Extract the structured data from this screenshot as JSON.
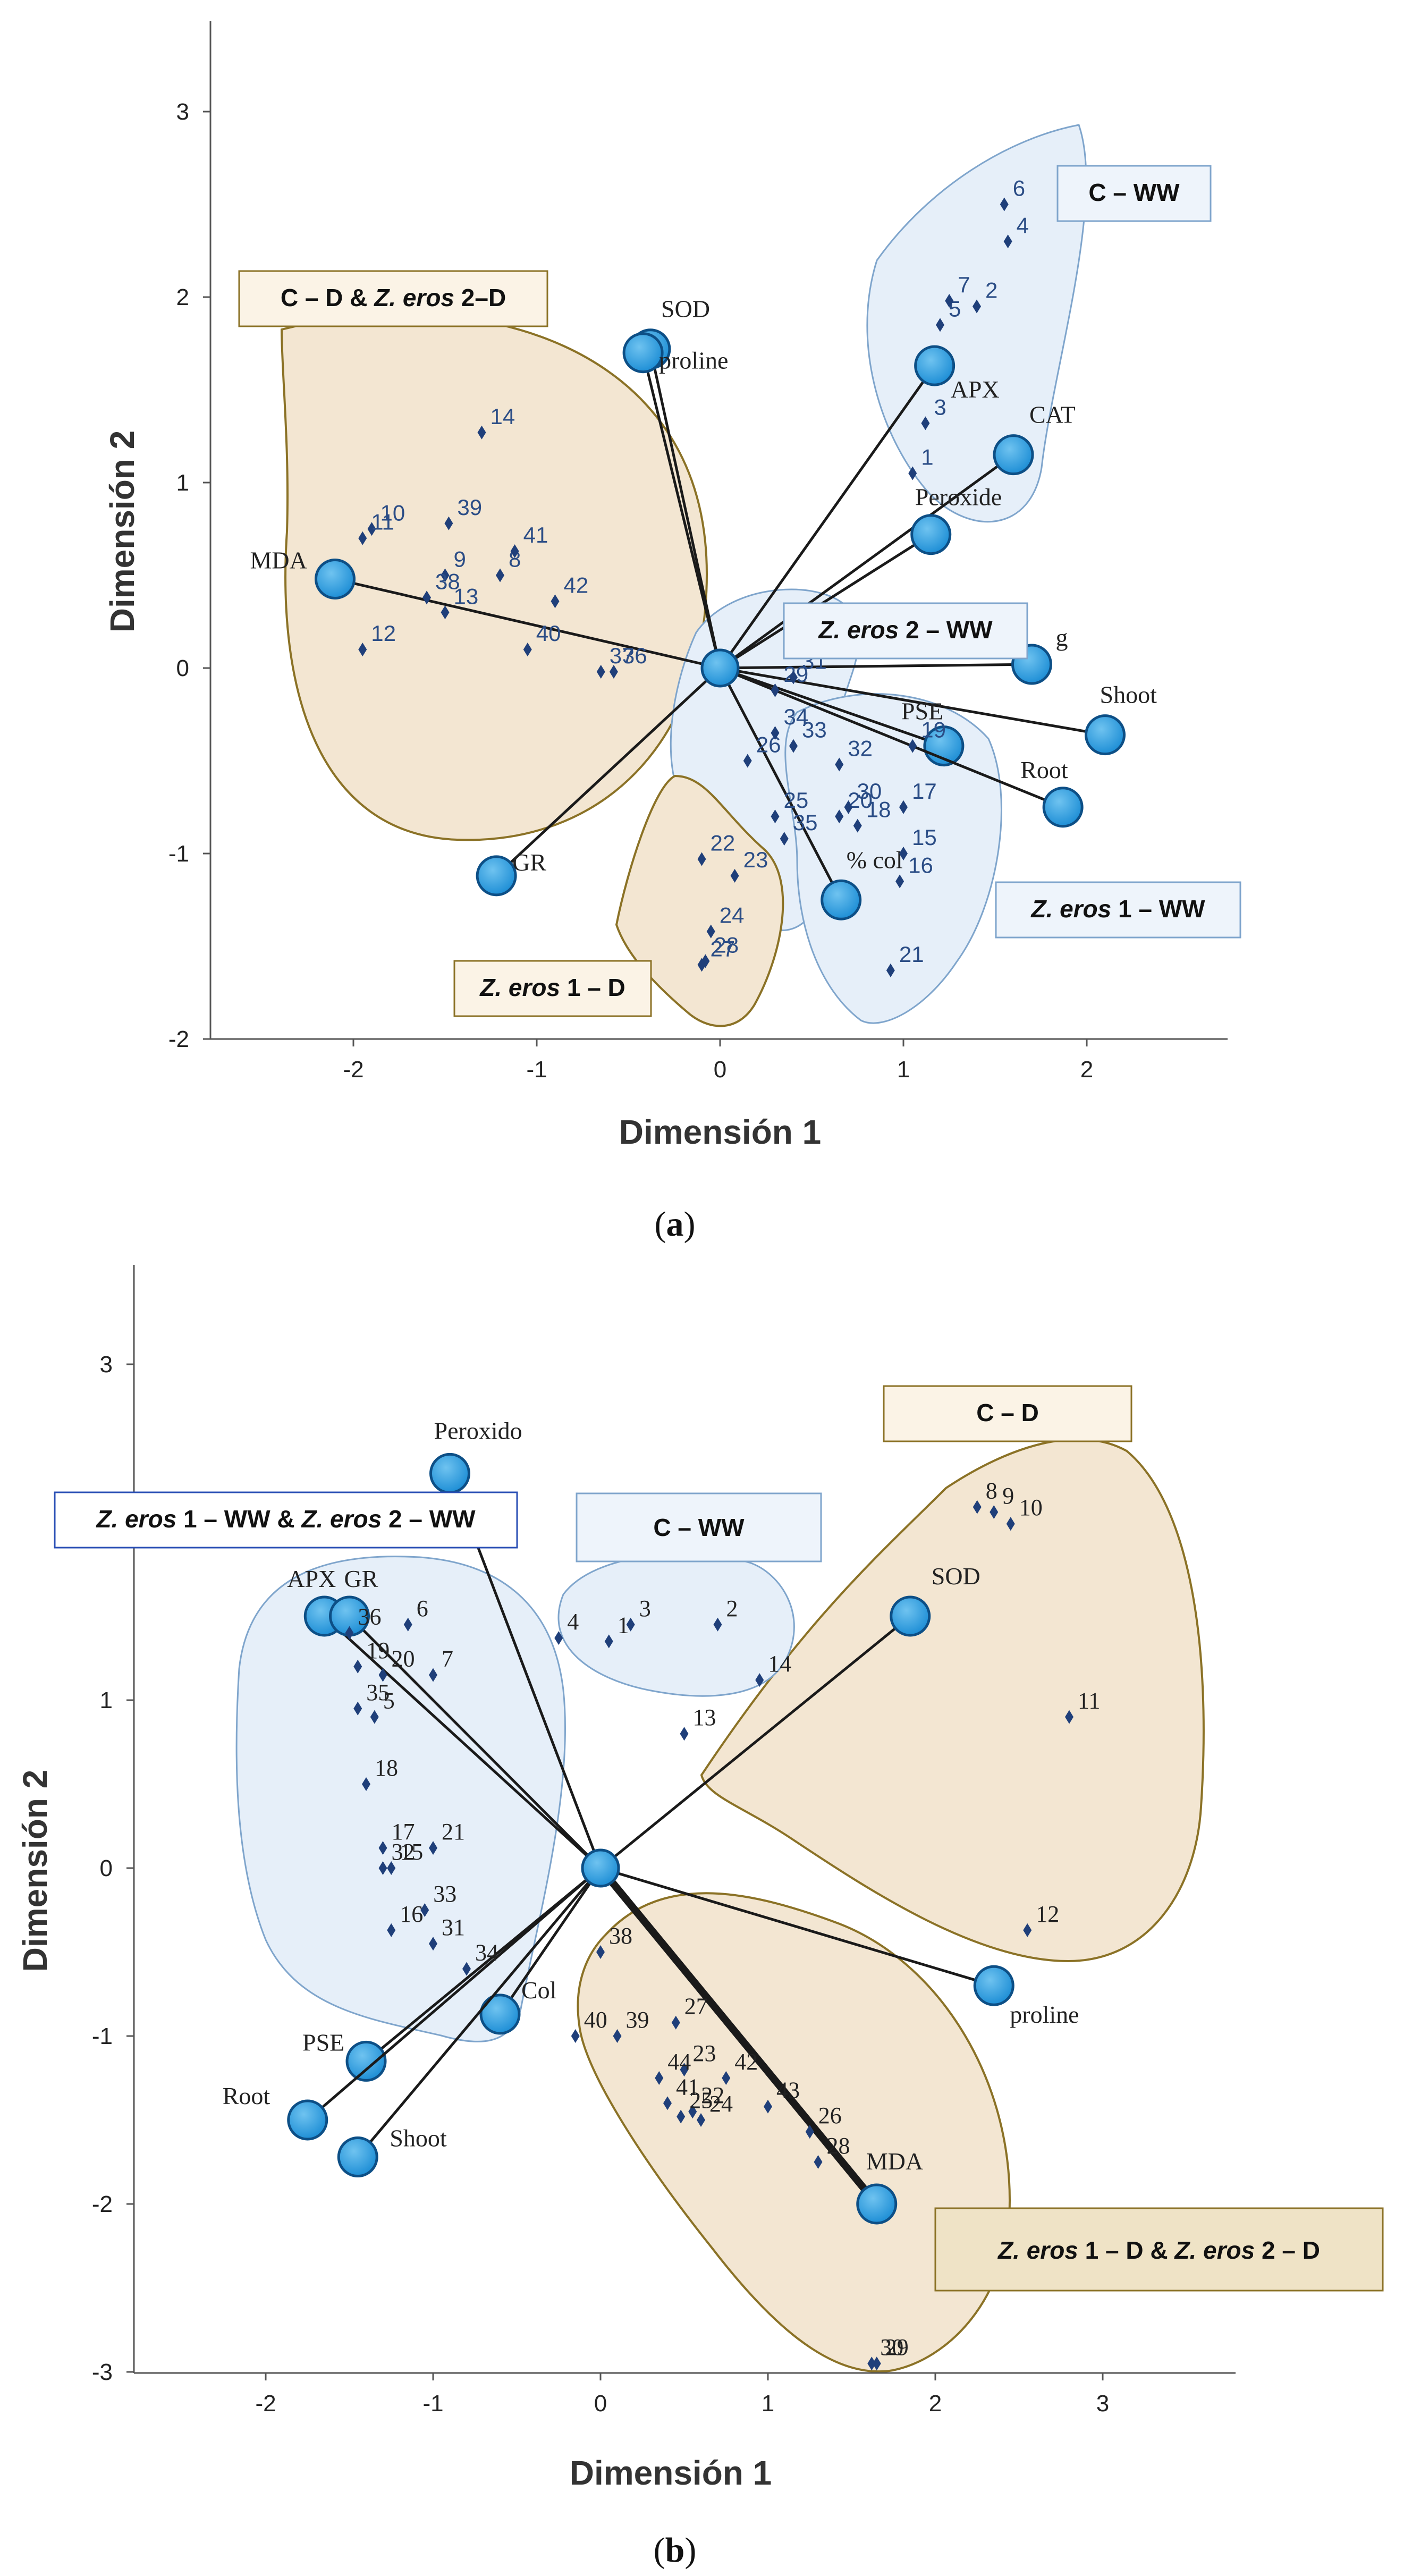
{
  "chart_data": [
    {
      "type": "scatter",
      "subtype": "biplot",
      "caption": "(a)",
      "xlabel": "Dimensión 1",
      "ylabel": "Dimensión 2",
      "xlim": [
        -2.8,
        2.8
      ],
      "ylim": [
        -2.0,
        3.5
      ],
      "xticks": [
        -2,
        -1,
        0,
        1,
        2
      ],
      "yticks": [
        -2,
        -1,
        0,
        1,
        2,
        3
      ],
      "vectors": [
        {
          "label": "SOD",
          "x": -0.38,
          "y": 1.72
        },
        {
          "label": "proline",
          "x": -0.42,
          "y": 1.7
        },
        {
          "label": "MDA",
          "x": -2.1,
          "y": 0.48
        },
        {
          "label": "GR",
          "x": -1.22,
          "y": -1.12
        },
        {
          "label": "APX",
          "x": 1.17,
          "y": 1.63
        },
        {
          "label": "CAT",
          "x": 1.6,
          "y": 1.15
        },
        {
          "label": "Peroxide",
          "x": 1.15,
          "y": 0.72
        },
        {
          "label": "g",
          "x": 1.7,
          "y": 0.02
        },
        {
          "label": "Shoot",
          "x": 2.1,
          "y": -0.36
        },
        {
          "label": "PSE",
          "x": 1.22,
          "y": -0.42
        },
        {
          "label": "Root",
          "x": 1.87,
          "y": -0.75
        },
        {
          "label": "% col",
          "x": 0.66,
          "y": -1.25
        }
      ],
      "points": [
        {
          "label": "1",
          "x": 1.05,
          "y": 1.05
        },
        {
          "label": "2",
          "x": 1.4,
          "y": 1.95
        },
        {
          "label": "3",
          "x": 1.12,
          "y": 1.32
        },
        {
          "label": "4",
          "x": 1.57,
          "y": 2.3
        },
        {
          "label": "5",
          "x": 1.2,
          "y": 1.85
        },
        {
          "label": "6",
          "x": 1.55,
          "y": 2.5
        },
        {
          "label": "7",
          "x": 1.25,
          "y": 1.98
        },
        {
          "label": "8",
          "x": -1.2,
          "y": 0.5
        },
        {
          "label": "9",
          "x": -1.5,
          "y": 0.5
        },
        {
          "label": "10",
          "x": -1.9,
          "y": 0.75
        },
        {
          "label": "11",
          "x": -1.95,
          "y": 0.7
        },
        {
          "label": "12",
          "x": -1.95,
          "y": 0.1
        },
        {
          "label": "13",
          "x": -1.5,
          "y": 0.3
        },
        {
          "label": "14",
          "x": -1.3,
          "y": 1.27
        },
        {
          "label": "15",
          "x": 1.0,
          "y": -1.0
        },
        {
          "label": "16",
          "x": 0.98,
          "y": -1.15
        },
        {
          "label": "17",
          "x": 1.0,
          "y": -0.75
        },
        {
          "label": "18",
          "x": 0.75,
          "y": -0.85
        },
        {
          "label": "19",
          "x": 1.05,
          "y": -0.42
        },
        {
          "label": "20",
          "x": 0.65,
          "y": -0.8
        },
        {
          "label": "21",
          "x": 0.93,
          "y": -1.63
        },
        {
          "label": "22",
          "x": -0.1,
          "y": -1.03
        },
        {
          "label": "23",
          "x": 0.08,
          "y": -1.12
        },
        {
          "label": "24",
          "x": -0.05,
          "y": -1.42
        },
        {
          "label": "25",
          "x": 0.3,
          "y": -0.8
        },
        {
          "label": "26",
          "x": 0.15,
          "y": -0.5
        },
        {
          "label": "27",
          "x": -0.1,
          "y": -1.6
        },
        {
          "label": "28",
          "x": -0.08,
          "y": -1.58
        },
        {
          "label": "29",
          "x": 0.3,
          "y": -0.12
        },
        {
          "label": "30",
          "x": 0.7,
          "y": -0.75
        },
        {
          "label": "31",
          "x": 0.4,
          "y": -0.05
        },
        {
          "label": "32",
          "x": 0.65,
          "y": -0.52
        },
        {
          "label": "33",
          "x": 0.4,
          "y": -0.42
        },
        {
          "label": "34",
          "x": 0.3,
          "y": -0.35
        },
        {
          "label": "35",
          "x": 0.35,
          "y": -0.92
        },
        {
          "label": "36",
          "x": -0.58,
          "y": -0.02
        },
        {
          "label": "37",
          "x": -0.65,
          "y": -0.02
        },
        {
          "label": "38",
          "x": -1.6,
          "y": 0.38
        },
        {
          "label": "39",
          "x": -1.48,
          "y": 0.78
        },
        {
          "label": "40",
          "x": -1.05,
          "y": 0.1
        },
        {
          "label": "41",
          "x": -1.12,
          "y": 0.63
        },
        {
          "label": "42",
          "x": -0.9,
          "y": 0.36
        }
      ],
      "groups": [
        {
          "name": "C – WW",
          "style": "blue"
        },
        {
          "name": "C – D & Z. eros 2–D",
          "style": "tan",
          "parts": [
            "C – D & ",
            "Z. eros",
            " 2–D"
          ]
        },
        {
          "name": "Z. eros 2 – WW",
          "style": "blue",
          "parts": [
            "Z. eros",
            " 2 – WW"
          ]
        },
        {
          "name": "Z. eros 1 – WW",
          "style": "blue",
          "parts": [
            "Z. eros",
            " 1 – WW"
          ]
        },
        {
          "name": "Z. eros 1 – D",
          "style": "tan",
          "parts": [
            "Z. eros",
            " 1 – D"
          ]
        }
      ]
    },
    {
      "type": "scatter",
      "subtype": "biplot",
      "caption": "(b)",
      "xlabel": "Dimensión 1",
      "ylabel": "Dimensión 2",
      "xlim": [
        -2.8,
        3.8
      ],
      "ylim": [
        -3.0,
        3.7
      ],
      "xticks": [
        -2,
        -1,
        0,
        1,
        2,
        3
      ],
      "yticks": [
        -3,
        -2,
        -1,
        0,
        1,
        2,
        3
      ],
      "vectors": [
        {
          "label": "Peroxido",
          "x": -0.9,
          "y": 2.35
        },
        {
          "label": "APX",
          "x": -1.65,
          "y": 1.5
        },
        {
          "label": "GR",
          "x": -1.5,
          "y": 1.5
        },
        {
          "label": "SOD",
          "x": 1.85,
          "y": 1.5
        },
        {
          "label": "proline",
          "x": 2.35,
          "y": -0.7
        },
        {
          "label": "MDA",
          "x": 1.65,
          "y": -2.0
        },
        {
          "label": "Col",
          "x": -0.6,
          "y": -0.87
        },
        {
          "label": "PSE",
          "x": -1.4,
          "y": -1.15
        },
        {
          "label": "Root",
          "x": -1.75,
          "y": -1.5
        },
        {
          "label": "Shoot",
          "x": -1.45,
          "y": -1.72
        }
      ],
      "points": [
        {
          "label": "1",
          "x": 0.05,
          "y": 1.35
        },
        {
          "label": "2",
          "x": 0.7,
          "y": 1.45
        },
        {
          "label": "3",
          "x": 0.18,
          "y": 1.45
        },
        {
          "label": "4",
          "x": -0.25,
          "y": 1.37
        },
        {
          "label": "5",
          "x": -1.35,
          "y": 0.9
        },
        {
          "label": "6",
          "x": -1.15,
          "y": 1.45
        },
        {
          "label": "7",
          "x": -1.0,
          "y": 1.15
        },
        {
          "label": "8",
          "x": 2.25,
          "y": 2.15
        },
        {
          "label": "9",
          "x": 2.35,
          "y": 2.12
        },
        {
          "label": "10",
          "x": 2.45,
          "y": 2.05
        },
        {
          "label": "11",
          "x": 2.8,
          "y": 0.9
        },
        {
          "label": "12",
          "x": 2.55,
          "y": -0.37
        },
        {
          "label": "13",
          "x": 0.5,
          "y": 0.8
        },
        {
          "label": "14",
          "x": 0.95,
          "y": 1.12
        },
        {
          "label": "15",
          "x": -1.25,
          "y": 0.0
        },
        {
          "label": "16",
          "x": -1.25,
          "y": -0.37
        },
        {
          "label": "17",
          "x": -1.3,
          "y": 0.12
        },
        {
          "label": "18",
          "x": -1.4,
          "y": 0.5
        },
        {
          "label": "19",
          "x": -1.45,
          "y": 1.2
        },
        {
          "label": "20",
          "x": -1.3,
          "y": 1.15
        },
        {
          "label": "21",
          "x": -1.0,
          "y": 0.12
        },
        {
          "label": "22",
          "x": 0.55,
          "y": -1.45
        },
        {
          "label": "23",
          "x": 0.5,
          "y": -1.2
        },
        {
          "label": "24",
          "x": 0.6,
          "y": -1.5
        },
        {
          "label": "25",
          "x": 0.48,
          "y": -1.48
        },
        {
          "label": "26",
          "x": 1.25,
          "y": -1.57
        },
        {
          "label": "27",
          "x": 0.45,
          "y": -0.92
        },
        {
          "label": "28",
          "x": 1.3,
          "y": -1.75
        },
        {
          "label": "29",
          "x": 1.65,
          "y": -2.95
        },
        {
          "label": "30",
          "x": 1.62,
          "y": -2.95
        },
        {
          "label": "31",
          "x": -1.0,
          "y": -0.45
        },
        {
          "label": "32",
          "x": -1.3,
          "y": 0.0
        },
        {
          "label": "33",
          "x": -1.05,
          "y": -0.25
        },
        {
          "label": "34",
          "x": -0.8,
          "y": -0.6
        },
        {
          "label": "35",
          "x": -1.45,
          "y": 0.95
        },
        {
          "label": "36",
          "x": -1.5,
          "y": 1.4
        },
        {
          "label": "38",
          "x": 0.0,
          "y": -0.5
        },
        {
          "label": "39",
          "x": 0.1,
          "y": -1.0
        },
        {
          "label": "40",
          "x": -0.15,
          "y": -1.0
        },
        {
          "label": "41",
          "x": 0.4,
          "y": -1.4
        },
        {
          "label": "42",
          "x": 0.75,
          "y": -1.25
        },
        {
          "label": "43",
          "x": 1.0,
          "y": -1.42
        },
        {
          "label": "44",
          "x": 0.35,
          "y": -1.25
        }
      ],
      "groups": [
        {
          "name": "C – D",
          "style": "tan"
        },
        {
          "name": "C – WW",
          "style": "blue"
        },
        {
          "name": "Z. eros 1 – WW & Z. eros 2 – WW",
          "style": "blue",
          "parts": [
            "Z. eros",
            " 1 – WW & ",
            "Z. eros",
            " 2 – WW"
          ]
        },
        {
          "name": "Z. eros 1 – D & Z. eros 2 – D",
          "style": "tan",
          "parts": [
            "Z. eros",
            " 1 – D & ",
            "Z. eros",
            " 2 – D"
          ]
        }
      ]
    }
  ]
}
